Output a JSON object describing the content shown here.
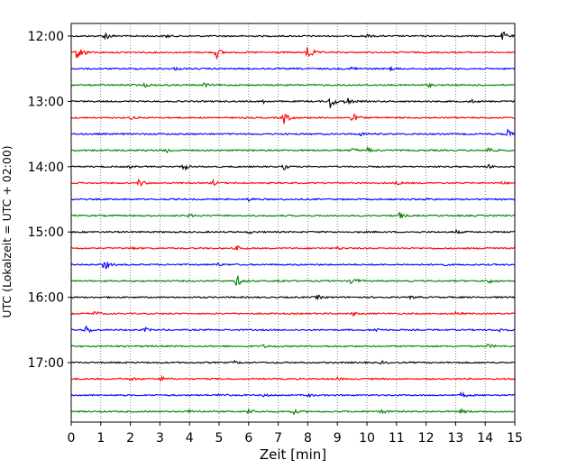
{
  "chart_data": {
    "type": "line",
    "title": "",
    "xlabel": "Zeit  [min]",
    "ylabel": "UTC (Lokalzeit = UTC + 02:00)",
    "xlim": [
      0,
      15
    ],
    "x_ticks": [
      "0",
      "1",
      "2",
      "3",
      "4",
      "5",
      "6",
      "7",
      "8",
      "9",
      "10",
      "11",
      "12",
      "13",
      "14",
      "15"
    ],
    "y_ticks": [
      "12:00",
      "13:00",
      "14:00",
      "15:00",
      "16:00",
      "17:00"
    ],
    "y_tick_traces": [
      0,
      4,
      8,
      12,
      16,
      20
    ],
    "grid": "vertical dotted at each minute",
    "trace_interval_minutes": 15,
    "trace_colors": [
      "#000000",
      "#ff0000",
      "#0000ff",
      "#008000"
    ],
    "traces": [
      {
        "start": "12:00",
        "events": [
          [
            1.15,
            0.35
          ],
          [
            14.6,
            0.35
          ],
          [
            3.2,
            0.12
          ],
          [
            10.0,
            0.1
          ]
        ]
      },
      {
        "start": "12:15",
        "events": [
          [
            0.2,
            0.55
          ],
          [
            4.9,
            0.5
          ],
          [
            8.0,
            0.75
          ],
          [
            0.4,
            0.2
          ]
        ]
      },
      {
        "start": "12:30",
        "events": [
          [
            9.5,
            0.18
          ],
          [
            10.8,
            0.12
          ],
          [
            3.5,
            0.1
          ]
        ]
      },
      {
        "start": "12:45",
        "events": [
          [
            2.5,
            0.14
          ],
          [
            4.5,
            0.15
          ],
          [
            12.1,
            0.12
          ]
        ]
      },
      {
        "start": "13:00",
        "events": [
          [
            8.75,
            0.65
          ],
          [
            9.3,
            0.4
          ],
          [
            6.5,
            0.12
          ],
          [
            13.5,
            0.15
          ]
        ]
      },
      {
        "start": "13:15",
        "events": [
          [
            7.2,
            0.55
          ],
          [
            9.5,
            0.38
          ],
          [
            2.0,
            0.1
          ]
        ]
      },
      {
        "start": "13:30",
        "events": [
          [
            14.75,
            0.35
          ],
          [
            9.8,
            0.12
          ]
        ]
      },
      {
        "start": "13:45",
        "events": [
          [
            3.2,
            0.25
          ],
          [
            10.0,
            0.25
          ],
          [
            14.1,
            0.25
          ],
          [
            9.5,
            0.15
          ]
        ]
      },
      {
        "start": "14:00",
        "events": [
          [
            3.8,
            0.28
          ],
          [
            7.2,
            0.2
          ],
          [
            14.1,
            0.15
          ],
          [
            2.0,
            0.1
          ]
        ]
      },
      {
        "start": "14:15",
        "events": [
          [
            2.3,
            0.32
          ],
          [
            4.8,
            0.18
          ],
          [
            11.0,
            0.15
          ],
          [
            14.5,
            0.15
          ]
        ]
      },
      {
        "start": "14:30",
        "events": [
          [
            6.0,
            0.12
          ],
          [
            12.0,
            0.12
          ]
        ]
      },
      {
        "start": "14:45",
        "events": [
          [
            11.1,
            0.25
          ],
          [
            4.0,
            0.1
          ]
        ]
      },
      {
        "start": "15:00",
        "events": [
          [
            13.0,
            0.12
          ],
          [
            6.0,
            0.1
          ]
        ]
      },
      {
        "start": "15:15",
        "events": [
          [
            5.6,
            0.18
          ],
          [
            2.0,
            0.12
          ],
          [
            14.0,
            0.15
          ],
          [
            9.0,
            0.1
          ]
        ]
      },
      {
        "start": "15:30",
        "events": [
          [
            1.1,
            0.45
          ],
          [
            4.9,
            0.15
          ],
          [
            12.5,
            0.1
          ]
        ]
      },
      {
        "start": "15:45",
        "events": [
          [
            5.6,
            0.45
          ],
          [
            9.5,
            0.38
          ],
          [
            14.1,
            0.2
          ],
          [
            7.0,
            0.1
          ]
        ]
      },
      {
        "start": "16:00",
        "events": [
          [
            8.3,
            0.18
          ],
          [
            11.5,
            0.12
          ]
        ]
      },
      {
        "start": "16:15",
        "events": [
          [
            0.8,
            0.2
          ],
          [
            9.5,
            0.15
          ],
          [
            13.0,
            0.12
          ]
        ]
      },
      {
        "start": "16:30",
        "events": [
          [
            0.5,
            0.38
          ],
          [
            2.5,
            0.15
          ],
          [
            10.3,
            0.15
          ],
          [
            14.5,
            0.12
          ]
        ]
      },
      {
        "start": "16:45",
        "events": [
          [
            14.1,
            0.15
          ],
          [
            6.5,
            0.1
          ]
        ]
      },
      {
        "start": "17:00",
        "events": [
          [
            5.5,
            0.12
          ],
          [
            10.5,
            0.1
          ]
        ]
      },
      {
        "start": "17:15",
        "events": [
          [
            3.0,
            0.2
          ],
          [
            2.0,
            0.15
          ],
          [
            9.0,
            0.1
          ]
        ]
      },
      {
        "start": "17:30",
        "events": [
          [
            13.2,
            0.22
          ],
          [
            5.0,
            0.15
          ],
          [
            8.0,
            0.12
          ],
          [
            6.5,
            0.1
          ]
        ]
      },
      {
        "start": "17:45",
        "events": [
          [
            6.0,
            0.22
          ],
          [
            7.5,
            0.2
          ],
          [
            10.5,
            0.18
          ],
          [
            13.2,
            0.15
          ],
          [
            4.0,
            0.12
          ]
        ]
      }
    ]
  }
}
